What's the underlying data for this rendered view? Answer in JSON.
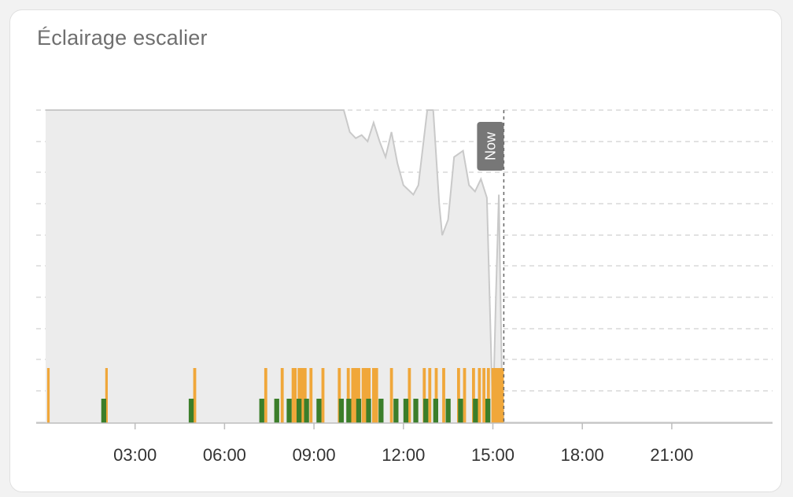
{
  "card": {
    "title": "Éclairage escalier"
  },
  "now_marker": {
    "label": "Now",
    "time": "15:22"
  },
  "colors": {
    "on": "#f0a73a",
    "motion": "#3b7e2a",
    "illuminance_fill": "#ececec",
    "illuminance_line": "#c9c9c9",
    "grid": "#d9d9d9",
    "now_badge": "#777777"
  },
  "chart_data": {
    "type": "line",
    "x_range": [
      "00:00",
      "24:00"
    ],
    "xticks": [
      "03:00",
      "06:00",
      "09:00",
      "12:00",
      "15:00",
      "18:00",
      "21:00"
    ],
    "grid": true,
    "y_tick_labels_visible": false,
    "illuminance": {
      "unit_scale": "relative 0-10",
      "points": [
        [
          "00:00",
          10.0
        ],
        [
          "10:00",
          10.0
        ],
        [
          "10:12",
          9.3
        ],
        [
          "10:24",
          9.1
        ],
        [
          "10:36",
          9.2
        ],
        [
          "10:48",
          9.0
        ],
        [
          "11:00",
          9.6
        ],
        [
          "11:12",
          9.0
        ],
        [
          "11:24",
          8.5
        ],
        [
          "11:36",
          9.3
        ],
        [
          "11:48",
          8.3
        ],
        [
          "12:00",
          7.6
        ],
        [
          "12:20",
          7.3
        ],
        [
          "12:30",
          7.6
        ],
        [
          "12:48",
          10.0
        ],
        [
          "13:00",
          10.0
        ],
        [
          "13:12",
          7.0
        ],
        [
          "13:18",
          6.0
        ],
        [
          "13:30",
          6.5
        ],
        [
          "13:42",
          8.5
        ],
        [
          "14:00",
          8.7
        ],
        [
          "14:12",
          7.6
        ],
        [
          "14:24",
          7.4
        ],
        [
          "14:36",
          7.8
        ],
        [
          "14:48",
          7.2
        ],
        [
          "15:00",
          0.2
        ],
        [
          "15:06",
          4.0
        ],
        [
          "15:12",
          7.3
        ],
        [
          "15:18",
          1.5
        ],
        [
          "15:22",
          0.0
        ]
      ]
    },
    "on_intervals": [
      [
        "00:03",
        "00:08"
      ],
      [
        "02:00",
        "02:05"
      ],
      [
        "04:57",
        "05:03"
      ],
      [
        "07:20",
        "07:26"
      ],
      [
        "07:53",
        "07:59"
      ],
      [
        "08:15",
        "08:25"
      ],
      [
        "08:27",
        "08:45"
      ],
      [
        "08:51",
        "08:57"
      ],
      [
        "09:15",
        "09:21"
      ],
      [
        "09:48",
        "09:54"
      ],
      [
        "10:06",
        "10:12"
      ],
      [
        "10:15",
        "10:33"
      ],
      [
        "10:36",
        "10:54"
      ],
      [
        "10:57",
        "11:09"
      ],
      [
        "11:33",
        "11:39"
      ],
      [
        "12:09",
        "12:15"
      ],
      [
        "12:39",
        "12:45"
      ],
      [
        "12:50",
        "12:56"
      ],
      [
        "13:03",
        "13:09"
      ],
      [
        "13:18",
        "13:24"
      ],
      [
        "13:48",
        "13:54"
      ],
      [
        "14:00",
        "14:06"
      ],
      [
        "14:18",
        "14:24"
      ],
      [
        "14:30",
        "14:36"
      ],
      [
        "14:39",
        "14:45"
      ],
      [
        "14:48",
        "14:54"
      ],
      [
        "14:57",
        "15:22"
      ]
    ],
    "motion_intervals": [
      [
        "01:52",
        "02:02"
      ],
      [
        "04:48",
        "04:58"
      ],
      [
        "07:10",
        "07:20"
      ],
      [
        "07:40",
        "07:50"
      ],
      [
        "08:05",
        "08:15"
      ],
      [
        "08:25",
        "08:35"
      ],
      [
        "08:40",
        "08:50"
      ],
      [
        "09:05",
        "09:15"
      ],
      [
        "09:50",
        "10:00"
      ],
      [
        "10:05",
        "10:15"
      ],
      [
        "10:25",
        "10:35"
      ],
      [
        "10:45",
        "10:55"
      ],
      [
        "11:10",
        "11:20"
      ],
      [
        "11:40",
        "11:50"
      ],
      [
        "12:00",
        "12:10"
      ],
      [
        "12:20",
        "12:30"
      ],
      [
        "12:40",
        "12:50"
      ],
      [
        "13:00",
        "13:10"
      ],
      [
        "13:25",
        "13:35"
      ],
      [
        "13:50",
        "14:00"
      ],
      [
        "14:20",
        "14:30"
      ],
      [
        "14:45",
        "14:55"
      ]
    ]
  }
}
